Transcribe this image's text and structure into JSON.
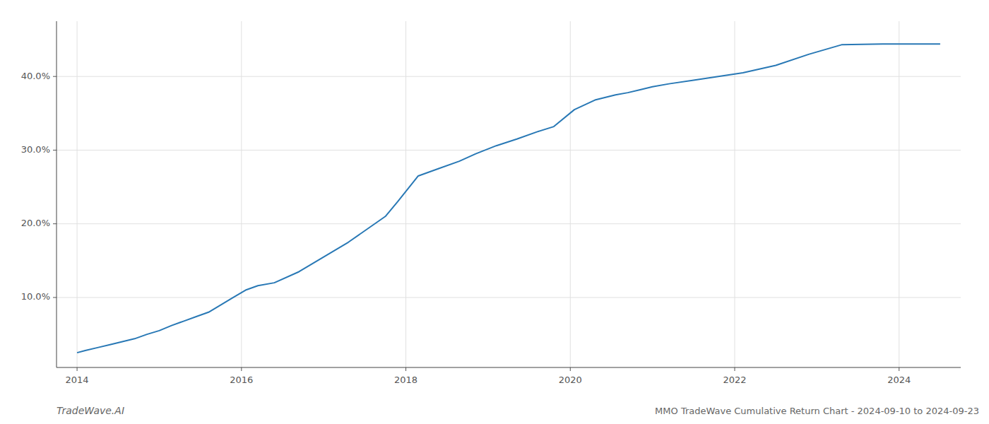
{
  "chart_data": {
    "type": "line",
    "title": "MMO TradeWave Cumulative Return Chart - 2024-09-10 to 2024-09-23",
    "annotations": [
      "TradeWave.AI"
    ],
    "color": "#2878b5",
    "grid": true,
    "xlim": [
      2013.75,
      2024.75
    ],
    "xticks": [
      2014,
      2016,
      2018,
      2020,
      2022,
      2024
    ],
    "ylim": [
      0.005,
      0.475
    ],
    "yticks": [
      {
        "value": 0.1,
        "label": "10.0%"
      },
      {
        "value": 0.2,
        "label": "20.0%"
      },
      {
        "value": 0.3,
        "label": "30.0%"
      },
      {
        "value": 0.4,
        "label": "40.0%"
      }
    ],
    "x": [
      2014.0,
      2014.1,
      2014.25,
      2014.4,
      2014.55,
      2014.7,
      2014.85,
      2015.0,
      2015.15,
      2015.3,
      2015.45,
      2015.6,
      2015.75,
      2015.9,
      2016.05,
      2016.2,
      2016.4,
      2016.7,
      2017.0,
      2017.3,
      2017.75,
      2017.9,
      2018.15,
      2018.4,
      2018.65,
      2018.85,
      2019.1,
      2019.35,
      2019.6,
      2019.8,
      2020.05,
      2020.3,
      2020.55,
      2020.7,
      2020.85,
      2021.0,
      2021.2,
      2021.5,
      2021.8,
      2022.1,
      2022.5,
      2022.9,
      2023.3,
      2023.8,
      2024.5
    ],
    "values": [
      0.025,
      0.028,
      0.032,
      0.036,
      0.04,
      0.044,
      0.05,
      0.055,
      0.062,
      0.068,
      0.074,
      0.08,
      0.09,
      0.1,
      0.11,
      0.116,
      0.12,
      0.135,
      0.155,
      0.175,
      0.21,
      0.23,
      0.265,
      0.275,
      0.285,
      0.295,
      0.306,
      0.315,
      0.325,
      0.332,
      0.355,
      0.368,
      0.375,
      0.378,
      0.382,
      0.386,
      0.39,
      0.395,
      0.4,
      0.405,
      0.415,
      0.43,
      0.443,
      0.444,
      0.444
    ]
  }
}
